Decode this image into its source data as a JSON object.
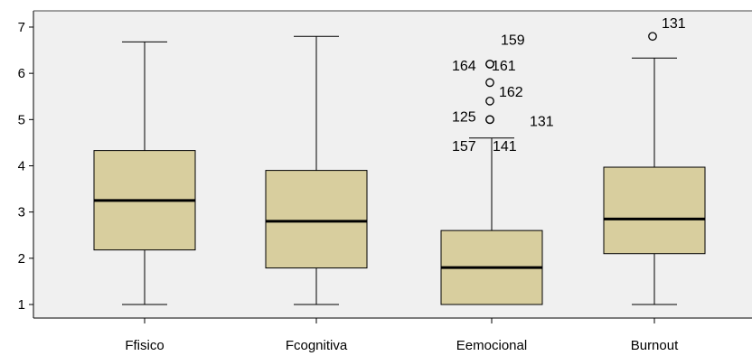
{
  "chart_data": {
    "type": "boxplot",
    "ylim": [
      0.7,
      7.2
    ],
    "yticks": [
      1,
      2,
      3,
      4,
      5,
      6,
      7
    ],
    "colors": {
      "box_fill": "#d8ce9e",
      "plot_bg": "#f0f0f0",
      "stroke": "#000000"
    },
    "categories": [
      "Ffisico",
      "Fcognitiva",
      "Eemocional",
      "Burnout"
    ],
    "boxes": [
      {
        "category": "Ffisico",
        "whisker_low": 1.0,
        "q1": 2.18,
        "median": 3.25,
        "q3": 4.33,
        "whisker_high": 6.68,
        "outliers": []
      },
      {
        "category": "Fcognitiva",
        "whisker_low": 1.0,
        "q1": 1.79,
        "median": 2.8,
        "q3": 3.9,
        "whisker_high": 6.8,
        "outliers": []
      },
      {
        "category": "Eemocional",
        "whisker_low": 1.0,
        "q1": 1.0,
        "median": 1.8,
        "q3": 2.6,
        "whisker_high": 4.6,
        "outliers": [
          {
            "value": 6.2,
            "label": "164"
          },
          {
            "value": 6.2,
            "label": "161"
          },
          {
            "value": 5.8,
            "label": "159"
          },
          {
            "value": 5.4,
            "label": "162"
          },
          {
            "value": 5.0,
            "label": "125"
          },
          {
            "value": 5.0,
            "label": "131"
          },
          {
            "value": 4.6,
            "label": "157"
          },
          {
            "value": 4.6,
            "label": "141"
          }
        ]
      },
      {
        "category": "Burnout",
        "whisker_low": 1.0,
        "q1": 2.1,
        "median": 2.85,
        "q3": 3.97,
        "whisker_high": 6.33,
        "outliers": [
          {
            "value": 6.8,
            "label": "131"
          }
        ]
      }
    ]
  }
}
